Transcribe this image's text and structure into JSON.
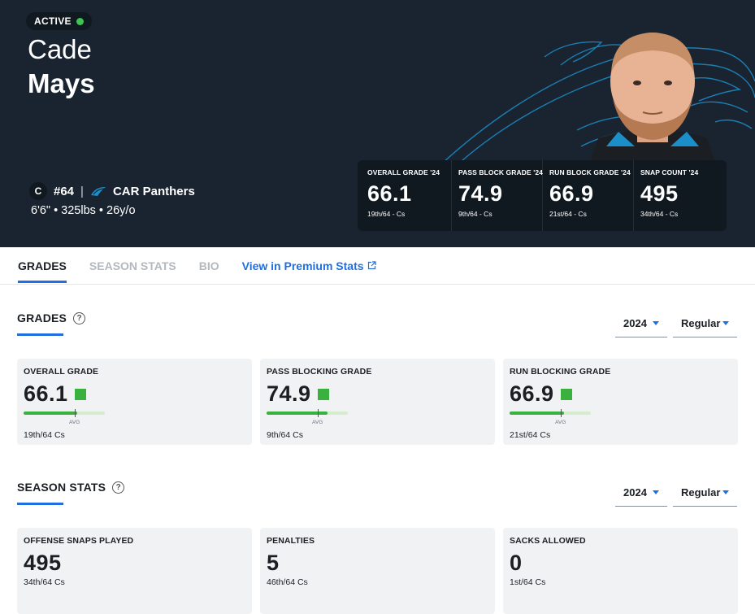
{
  "hero": {
    "status": "ACTIVE",
    "first_name": "Cade",
    "last_name": "Mays",
    "position": "C",
    "jersey": "#64",
    "separator": "|",
    "team": "CAR Panthers",
    "bio": "6'6\" • 325lbs • 26y/o",
    "grade_summary": [
      {
        "label": "OVERALL GRADE '24",
        "value": "66.1",
        "rank": "19th/64 - Cs"
      },
      {
        "label": "PASS BLOCK GRADE '24",
        "value": "74.9",
        "rank": "9th/64 - Cs"
      },
      {
        "label": "RUN BLOCK GRADE '24",
        "value": "66.9",
        "rank": "21st/64 - Cs"
      },
      {
        "label": "SNAP COUNT '24",
        "value": "495",
        "rank": "34th/64 - Cs"
      }
    ]
  },
  "tabs": [
    {
      "label": "GRADES",
      "active": true
    },
    {
      "label": "SEASON STATS",
      "active": false
    },
    {
      "label": "BIO",
      "active": false
    },
    {
      "label": "View in Premium Stats",
      "active": false
    }
  ],
  "grades_section": {
    "title": "GRADES",
    "year": "2024",
    "season_type": "Regular",
    "avg_label": "AVG",
    "cards": [
      {
        "label": "OVERALL GRADE",
        "value": "66.1",
        "rank": "19th/64 Cs",
        "fill_pct": 66.1
      },
      {
        "label": "PASS BLOCKING GRADE",
        "value": "74.9",
        "rank": "9th/64 Cs",
        "fill_pct": 74.9
      },
      {
        "label": "RUN BLOCKING GRADE",
        "value": "66.9",
        "rank": "21st/64 Cs",
        "fill_pct": 66.9
      }
    ]
  },
  "stats_section": {
    "title": "SEASON STATS",
    "year": "2024",
    "season_type": "Regular",
    "cards": [
      {
        "label": "OFFENSE SNAPS PLAYED",
        "value": "495",
        "rank": "34th/64 Cs"
      },
      {
        "label": "PENALTIES",
        "value": "5",
        "rank": "46th/64 Cs"
      },
      {
        "label": "SACKS ALLOWED",
        "value": "0",
        "rank": "1st/64 Cs"
      }
    ]
  },
  "colors": {
    "accent": "#1f6fe0",
    "grade_green": "#3ab03e",
    "hero_bg": "#1a2330",
    "status_green": "#3ec454"
  }
}
